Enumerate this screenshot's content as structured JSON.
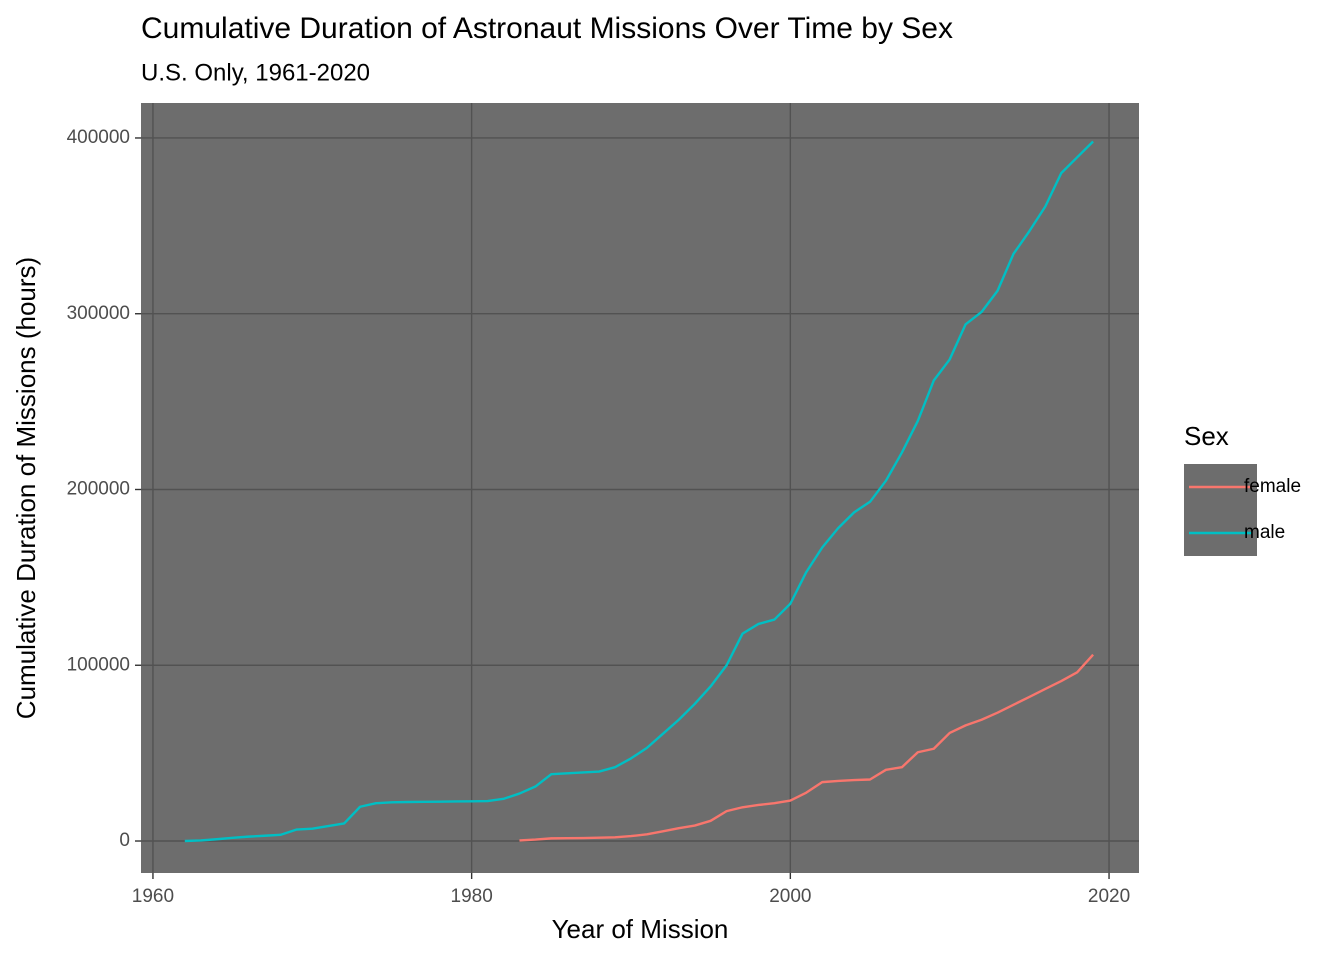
{
  "chart_data": {
    "type": "line",
    "title": "Cumulative Duration of Astronaut Missions Over Time by Sex",
    "subtitle": "U.S. Only, 1961-2020",
    "x_label": "Year of Mission",
    "y_label": "Cumulative Duration of Missions (hours)",
    "legend_title": "Sex",
    "legend_position": "right",
    "grid": true,
    "xlim": [
      1959.25,
      2021.88
    ],
    "xticks": [
      1960,
      1980,
      2000,
      2020
    ],
    "ylim": [
      -18200,
      419900
    ],
    "yticks": [
      0,
      100000,
      200000,
      300000,
      400000
    ],
    "x": [
      1962,
      1963,
      1964,
      1965,
      1966,
      1967,
      1968,
      1969,
      1970,
      1971,
      1972,
      1973,
      1974,
      1975,
      1976,
      1977,
      1978,
      1979,
      1980,
      1981,
      1982,
      1983,
      1984,
      1985,
      1986,
      1987,
      1988,
      1989,
      1990,
      1991,
      1992,
      1993,
      1994,
      1995,
      1996,
      1997,
      1998,
      1999,
      2000,
      2001,
      2002,
      2003,
      2004,
      2005,
      2006,
      2007,
      2008,
      2009,
      2010,
      2011,
      2012,
      2013,
      2014,
      2015,
      2016,
      2017,
      2018,
      2019
    ],
    "series": [
      {
        "name": "female",
        "color": "#F8766D",
        "values": [
          null,
          null,
          null,
          null,
          null,
          null,
          null,
          null,
          null,
          null,
          null,
          null,
          null,
          null,
          null,
          null,
          null,
          null,
          null,
          null,
          null,
          300,
          800,
          1500,
          1600,
          1700,
          1900,
          2100,
          2800,
          3800,
          5500,
          7300,
          8800,
          11500,
          17000,
          19200,
          20500,
          21500,
          23000,
          27500,
          33500,
          34200,
          34700,
          35000,
          40500,
          42000,
          50500,
          52500,
          61500,
          65800,
          69000,
          73000,
          77500,
          82000,
          86500,
          91000,
          96000,
          106000
        ]
      },
      {
        "name": "male",
        "color": "#00BFC4",
        "values": [
          0,
          300,
          1000,
          1800,
          2500,
          3000,
          3500,
          6500,
          7000,
          8500,
          10000,
          19500,
          21500,
          22000,
          22200,
          22300,
          22400,
          22500,
          22600,
          22700,
          24000,
          27000,
          31000,
          38000,
          38500,
          39000,
          39500,
          42000,
          47000,
          53000,
          61000,
          69000,
          78000,
          88000,
          100000,
          118000,
          123500,
          126000,
          135000,
          153000,
          167000,
          178000,
          187000,
          193000,
          205000,
          221000,
          239000,
          262000,
          274000,
          294000,
          301000,
          313000,
          334000,
          347000,
          361000,
          380000,
          389000,
          398000
        ]
      }
    ]
  }
}
